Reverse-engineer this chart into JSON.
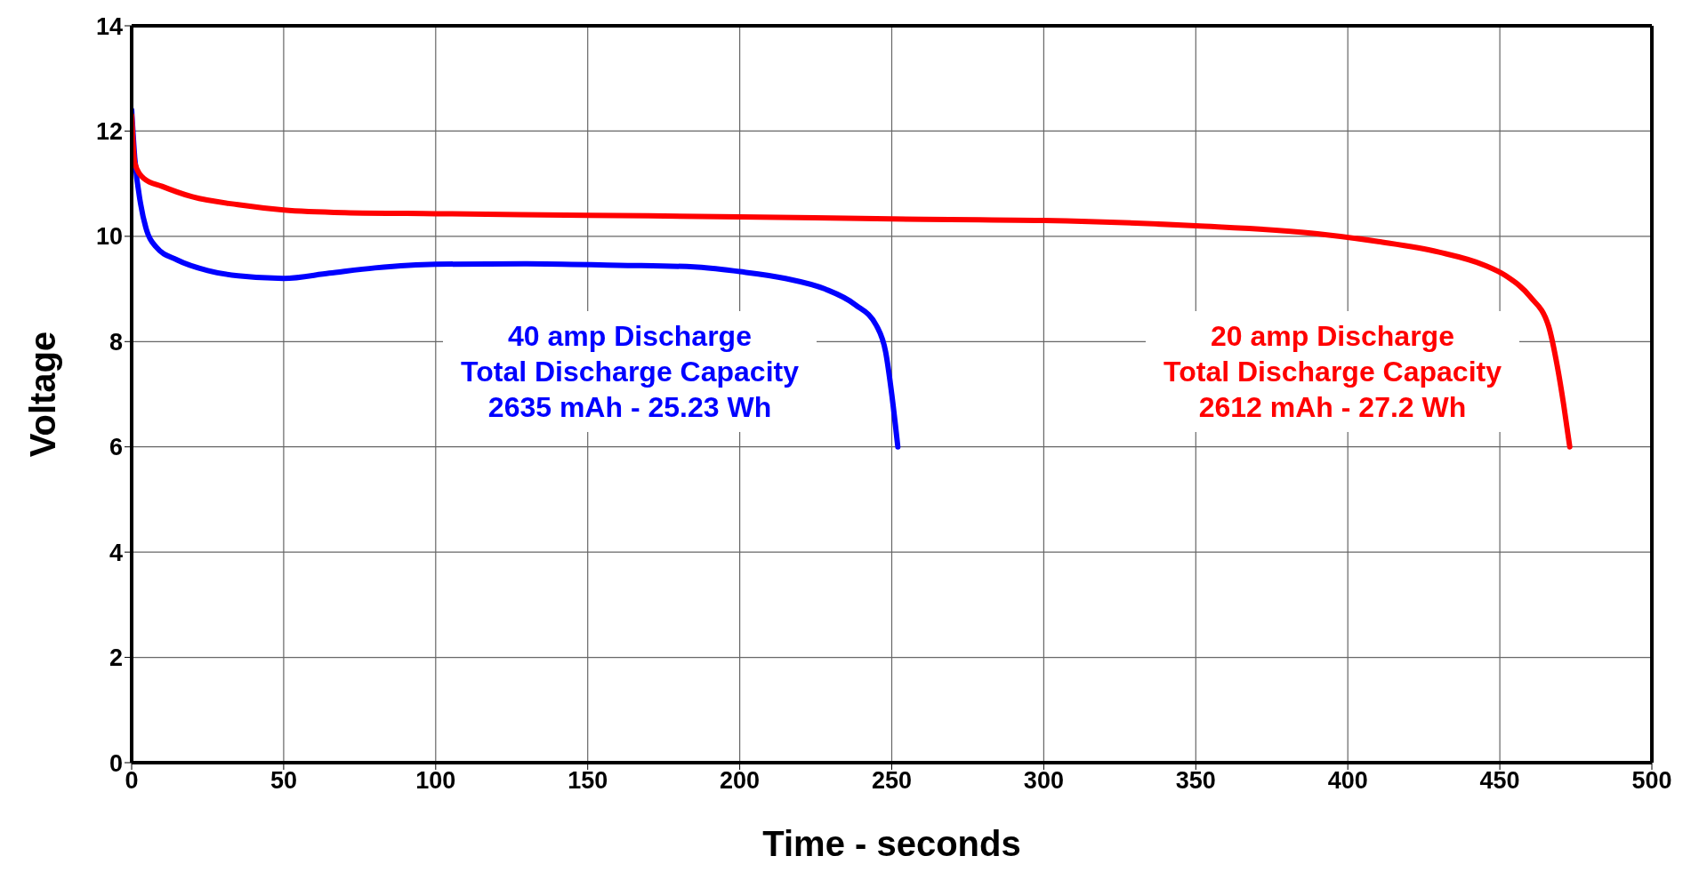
{
  "chart_data": {
    "type": "line",
    "xlabel": "Time - seconds",
    "ylabel": "Voltage",
    "xlim": [
      0,
      500
    ],
    "xticks": [
      0,
      50,
      100,
      150,
      200,
      250,
      300,
      350,
      400,
      450,
      500
    ],
    "ylim": [
      0,
      14
    ],
    "yticks": [
      0,
      2,
      4,
      6,
      8,
      10,
      12,
      14
    ],
    "grid": true,
    "legend": false,
    "marker": "none",
    "line_style": "solid",
    "series": [
      {
        "color": "#0000ff",
        "x": [
          0,
          1,
          3,
          5,
          8,
          15,
          25,
          35,
          50,
          65,
          80,
          100,
          130,
          160,
          185,
          200,
          215,
          228,
          238,
          245,
          248,
          250,
          252
        ],
        "values": [
          12.4,
          11.5,
          10.6,
          10.1,
          9.8,
          9.55,
          9.35,
          9.25,
          9.2,
          9.3,
          9.4,
          9.47,
          9.48,
          9.45,
          9.42,
          9.33,
          9.2,
          9.0,
          8.7,
          8.3,
          7.8,
          7.0,
          6.0
        ]
      },
      {
        "color": "#ff0000",
        "x": [
          0,
          1,
          4,
          10,
          20,
          35,
          50,
          70,
          100,
          150,
          200,
          250,
          300,
          350,
          390,
          410,
          430,
          445,
          452,
          460,
          466,
          469,
          471,
          473
        ],
        "values": [
          12.3,
          11.4,
          11.1,
          10.95,
          10.75,
          10.6,
          10.5,
          10.45,
          10.43,
          10.4,
          10.37,
          10.33,
          10.3,
          10.2,
          10.05,
          9.9,
          9.7,
          9.45,
          9.25,
          8.85,
          8.3,
          7.5,
          6.8,
          6.0
        ]
      }
    ],
    "annotations": [
      "40 amp Discharge\nTotal Discharge Capacity\n2635 mAh - 25.23 Wh",
      "20 amp Discharge\nTotal Discharge Capacity\n2612 mAh - 27.2 Wh"
    ]
  }
}
